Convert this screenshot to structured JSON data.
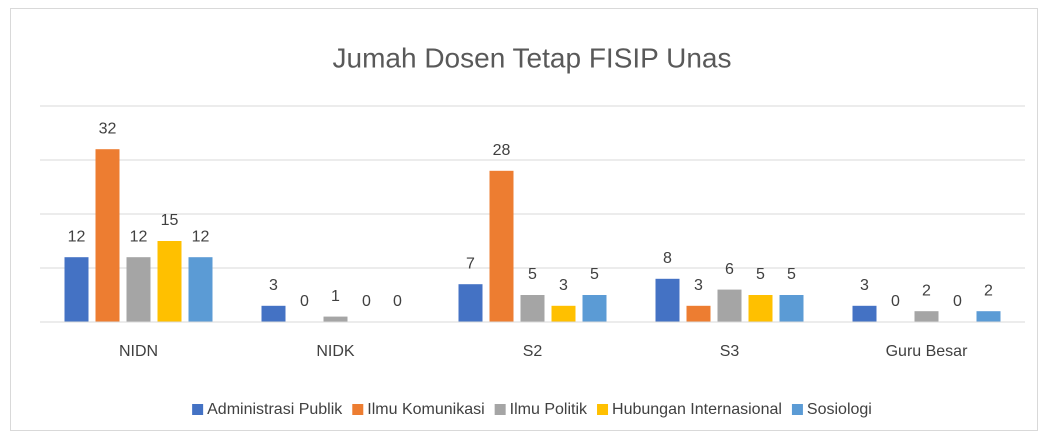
{
  "chart_data": {
    "type": "bar",
    "title": "Jumah Dosen Tetap FISIP Unas",
    "categories": [
      "NIDN",
      "NIDK",
      "S2",
      "S3",
      "Guru Besar"
    ],
    "series": [
      {
        "name": "Administrasi Publik",
        "color": "#4472c4",
        "values": [
          12,
          3,
          7,
          8,
          3
        ]
      },
      {
        "name": "Ilmu Komunikasi",
        "color": "#ed7d31",
        "values": [
          32,
          0,
          28,
          3,
          0
        ]
      },
      {
        "name": "Ilmu Politik",
        "color": "#a5a5a5",
        "values": [
          12,
          1,
          5,
          6,
          2
        ]
      },
      {
        "name": "Hubungan Internasional",
        "color": "#ffc000",
        "values": [
          15,
          0,
          3,
          5,
          0
        ]
      },
      {
        "name": "Sosiologi",
        "color": "#5b9bd5",
        "values": [
          12,
          0,
          5,
          5,
          2
        ]
      }
    ],
    "ylim": [
      0,
      40
    ],
    "yticks": [
      0,
      10,
      20,
      30,
      40
    ],
    "grid": true,
    "legend": "bottom"
  }
}
